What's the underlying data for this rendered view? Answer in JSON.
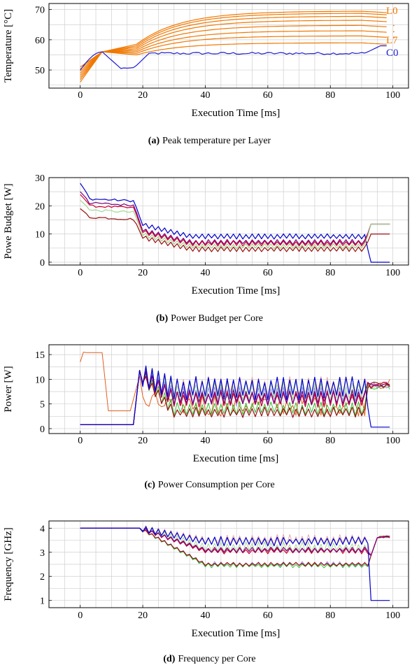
{
  "colors": {
    "layers": [
      "#f07800",
      "#f07800",
      "#f07800",
      "#f07800",
      "#f07800",
      "#f07800",
      "#f07800",
      "#f07800"
    ],
    "core_temp": "#1f1fd0",
    "cores": [
      "#0000cc",
      "#7a007a",
      "#cc0033",
      "#9b1010",
      "#22bb22",
      "#8888ee",
      "#e8a0a0",
      "#a0d890",
      "#e06020"
    ],
    "grid": "#cfcfcf"
  },
  "chart_data": [
    {
      "id": "a",
      "type": "line",
      "caption_letter": "(a)",
      "caption_text": "Peak temperature per Layer",
      "xlabel": "Execution Time [ms]",
      "ylabel": "Temperature [°C]",
      "xlim": [
        -10,
        105
      ],
      "ylim": [
        44,
        72
      ],
      "xticks": [
        0,
        20,
        40,
        60,
        80,
        100
      ],
      "yticks": [
        50,
        60,
        70
      ],
      "grid": true,
      "annotations": {
        "top": "L0",
        "dots": "·  ·  ·",
        "bottom": "L7",
        "core": "C0"
      },
      "series_spec": {
        "layers": [
          {
            "start": 46,
            "plateau": 58.5,
            "final": 69.5
          },
          {
            "start": 46.8,
            "plateau": 58.0,
            "final": 68.8
          },
          {
            "start": 47.5,
            "plateau": 57.5,
            "final": 67.8
          },
          {
            "start": 48.2,
            "plateau": 57.0,
            "final": 66.5
          },
          {
            "start": 48.9,
            "plateau": 56.5,
            "final": 64.8
          },
          {
            "start": 49.6,
            "plateau": 56.0,
            "final": 63.0
          },
          {
            "start": 50.3,
            "plateau": 55.5,
            "final": 61.3
          },
          {
            "start": 51.0,
            "plateau": 55.0,
            "final": 59.0
          }
        ],
        "core": {
          "start": 50,
          "peak": 56,
          "dip": 50.5,
          "final": 55.5,
          "end": 58
        }
      }
    },
    {
      "id": "b",
      "type": "line",
      "caption_letter": "(b)",
      "caption_text": "Power Budget per Core",
      "xlabel": "Execution Time [ms]",
      "ylabel": "Powe Budget [W]",
      "xlim": [
        -10,
        105
      ],
      "ylim": [
        -1,
        30
      ],
      "xticks": [
        0,
        20,
        40,
        60,
        80,
        100
      ],
      "yticks": [
        0,
        10,
        20,
        30
      ],
      "grid": true,
      "series_spec": [
        {
          "c": 0,
          "initial": 28,
          "mid": 22.5,
          "final": 9,
          "tail": 0
        },
        {
          "c": 1,
          "initial": 25,
          "mid": 21,
          "final": 7,
          "tail": 13.5
        },
        {
          "c": 2,
          "initial": 24,
          "mid": 20,
          "final": 6.5,
          "tail": 13.5
        },
        {
          "c": 7,
          "initial": 22,
          "mid": 18.5,
          "final": 5.5,
          "tail": 13.5
        },
        {
          "c": 3,
          "initial": 19,
          "mid": 16,
          "final": 4.5,
          "tail": 10
        }
      ]
    },
    {
      "id": "c",
      "type": "line",
      "caption_letter": "(c)",
      "caption_text": "Power Consumption per Core",
      "xlabel": "Execution time [ms]",
      "ylabel": "Power [W]",
      "xlim": [
        -10,
        105
      ],
      "ylim": [
        -1,
        17
      ],
      "xticks": [
        0,
        20,
        40,
        60,
        80,
        100
      ],
      "yticks": [
        0,
        5,
        10,
        15
      ],
      "grid": true
    },
    {
      "id": "d",
      "type": "line",
      "caption_letter": "(d)",
      "caption_text": "Frequency per Core",
      "xlabel": "Execution Time [ms]",
      "ylabel": "Frequency [GHz]",
      "xlim": [
        -10,
        105
      ],
      "ylim": [
        0.7,
        4.3
      ],
      "xticks": [
        0,
        20,
        40,
        60,
        80,
        100
      ],
      "yticks": [
        1,
        2,
        3,
        4
      ],
      "grid": true
    }
  ]
}
